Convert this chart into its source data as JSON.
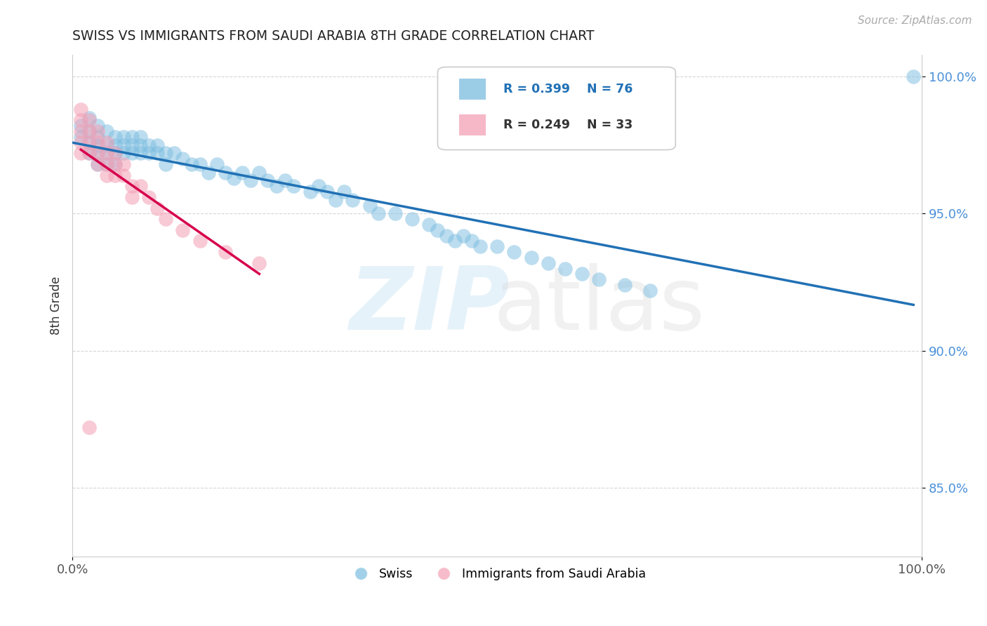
{
  "title": "SWISS VS IMMIGRANTS FROM SAUDI ARABIA 8TH GRADE CORRELATION CHART",
  "source": "Source: ZipAtlas.com",
  "ylabel": "8th Grade",
  "xlim": [
    0.0,
    1.0
  ],
  "ylim": [
    0.825,
    1.008
  ],
  "yticks": [
    0.85,
    0.9,
    0.95,
    1.0
  ],
  "ytick_labels": [
    "85.0%",
    "90.0%",
    "95.0%",
    "100.0%"
  ],
  "xticks": [
    0.0,
    1.0
  ],
  "xtick_labels": [
    "0.0%",
    "100.0%"
  ],
  "legend_r_swiss": "R = 0.399",
  "legend_n_swiss": "N = 76",
  "legend_r_immig": "R = 0.249",
  "legend_n_immig": "N = 33",
  "swiss_color": "#7bbde0",
  "immig_color": "#f4a0b5",
  "swiss_line_color": "#2171b5",
  "immig_line_color": "#d6004c",
  "swiss_x": [
    0.01,
    0.01,
    0.02,
    0.02,
    0.02,
    0.02,
    0.03,
    0.03,
    0.03,
    0.03,
    0.03,
    0.04,
    0.04,
    0.04,
    0.04,
    0.05,
    0.05,
    0.05,
    0.05,
    0.06,
    0.06,
    0.06,
    0.07,
    0.07,
    0.07,
    0.08,
    0.08,
    0.08,
    0.09,
    0.09,
    0.1,
    0.1,
    0.11,
    0.11,
    0.12,
    0.13,
    0.14,
    0.15,
    0.16,
    0.17,
    0.18,
    0.19,
    0.2,
    0.21,
    0.22,
    0.23,
    0.24,
    0.25,
    0.26,
    0.28,
    0.29,
    0.3,
    0.31,
    0.32,
    0.33,
    0.35,
    0.36,
    0.38,
    0.4,
    0.42,
    0.43,
    0.44,
    0.45,
    0.46,
    0.47,
    0.48,
    0.5,
    0.52,
    0.54,
    0.56,
    0.58,
    0.6,
    0.62,
    0.65,
    0.68,
    0.99
  ],
  "swiss_y": [
    0.982,
    0.978,
    0.985,
    0.98,
    0.976,
    0.972,
    0.982,
    0.978,
    0.975,
    0.972,
    0.968,
    0.98,
    0.975,
    0.972,
    0.968,
    0.978,
    0.975,
    0.972,
    0.968,
    0.978,
    0.975,
    0.972,
    0.978,
    0.975,
    0.972,
    0.978,
    0.975,
    0.972,
    0.975,
    0.972,
    0.975,
    0.972,
    0.972,
    0.968,
    0.972,
    0.97,
    0.968,
    0.968,
    0.965,
    0.968,
    0.965,
    0.963,
    0.965,
    0.962,
    0.965,
    0.962,
    0.96,
    0.962,
    0.96,
    0.958,
    0.96,
    0.958,
    0.955,
    0.958,
    0.955,
    0.953,
    0.95,
    0.95,
    0.948,
    0.946,
    0.944,
    0.942,
    0.94,
    0.942,
    0.94,
    0.938,
    0.938,
    0.936,
    0.934,
    0.932,
    0.93,
    0.928,
    0.926,
    0.924,
    0.922,
    1.0
  ],
  "immig_x": [
    0.01,
    0.01,
    0.01,
    0.01,
    0.01,
    0.02,
    0.02,
    0.02,
    0.02,
    0.03,
    0.03,
    0.03,
    0.03,
    0.04,
    0.04,
    0.04,
    0.04,
    0.05,
    0.05,
    0.05,
    0.06,
    0.06,
    0.07,
    0.07,
    0.08,
    0.09,
    0.1,
    0.11,
    0.13,
    0.15,
    0.18,
    0.22,
    0.02
  ],
  "immig_y": [
    0.988,
    0.984,
    0.98,
    0.976,
    0.972,
    0.984,
    0.98,
    0.976,
    0.972,
    0.98,
    0.976,
    0.972,
    0.968,
    0.976,
    0.972,
    0.968,
    0.964,
    0.972,
    0.968,
    0.964,
    0.968,
    0.964,
    0.96,
    0.956,
    0.96,
    0.956,
    0.952,
    0.948,
    0.944,
    0.94,
    0.936,
    0.932,
    0.872
  ]
}
